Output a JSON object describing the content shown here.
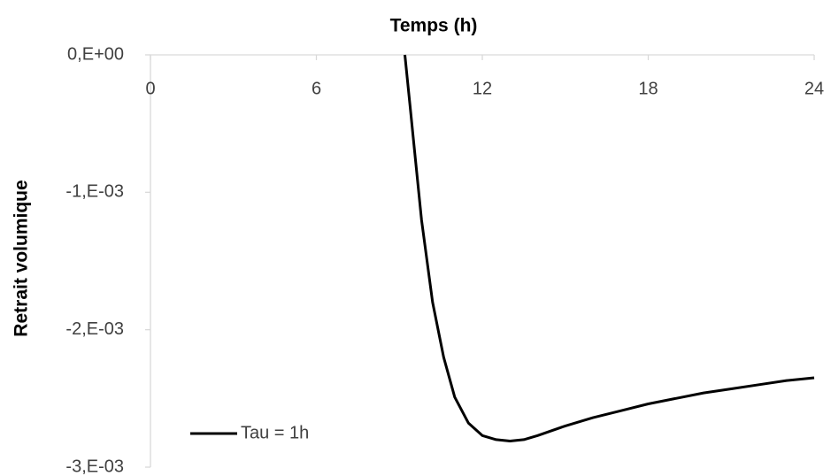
{
  "chart_data": {
    "type": "line",
    "title": "Temps (h)",
    "y_label": "Retrait volumique",
    "x": [
      9.2,
      9.4,
      9.5,
      9.8,
      10.2,
      10.6,
      11,
      11.5,
      12,
      12.5,
      13,
      13.5,
      14,
      15,
      16,
      17,
      18,
      19,
      20,
      21,
      22,
      23,
      24
    ],
    "series": [
      {
        "name": "Tau = 1h",
        "color": "#000000",
        "values": [
          0,
          -0.0004,
          -0.0006,
          -0.0012,
          -0.0018,
          -0.0022,
          -0.00249,
          -0.00268,
          -0.00277,
          -0.0028,
          -0.00281,
          -0.0028,
          -0.00277,
          -0.0027,
          -0.00264,
          -0.00259,
          -0.00254,
          -0.0025,
          -0.00246,
          -0.00243,
          -0.0024,
          -0.00237,
          -0.00235
        ]
      }
    ],
    "xlim": [
      0,
      24
    ],
    "xticks": [
      0,
      6,
      12,
      18,
      24
    ],
    "ylim": [
      -0.003,
      0
    ],
    "yticks": [
      {
        "value": 0,
        "label": "0,E+00"
      },
      {
        "value": -0.001,
        "label": "-1,E-03"
      },
      {
        "value": -0.002,
        "label": "-2,E-03"
      },
      {
        "value": -0.003,
        "label": "-3,E-03"
      }
    ],
    "legend": "bottom-left"
  }
}
